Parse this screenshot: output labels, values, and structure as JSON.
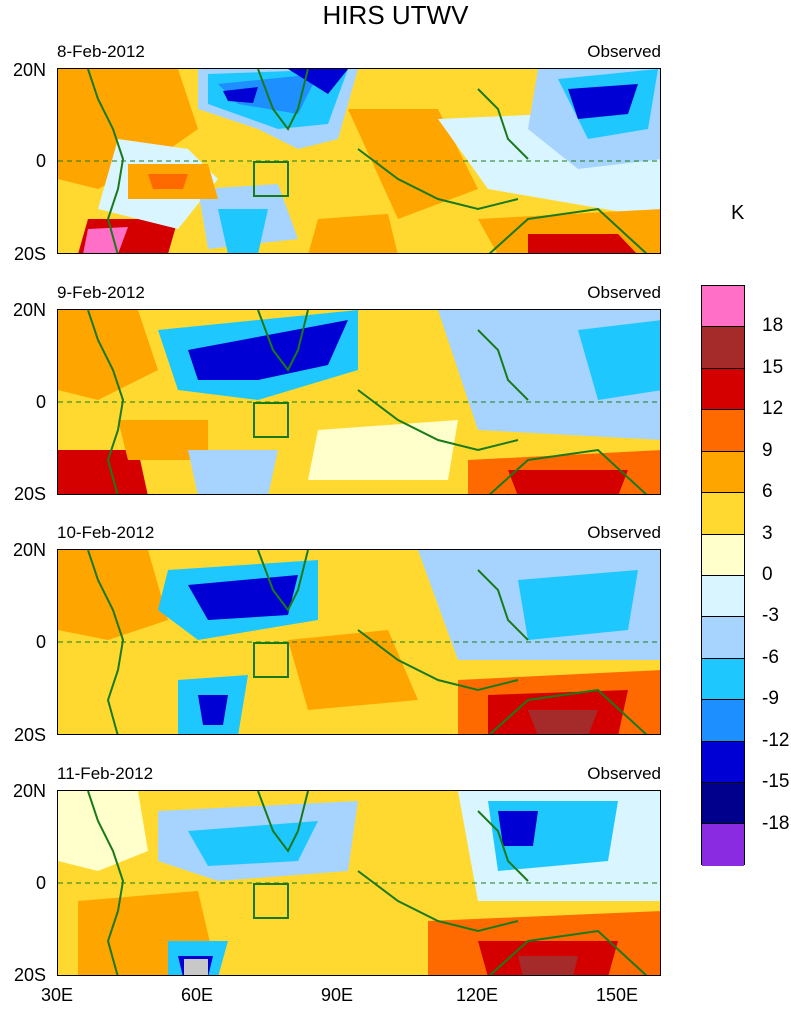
{
  "title": "HIRS UTWV",
  "units": "K",
  "latitude_labels": [
    "20N",
    "0",
    "20S"
  ],
  "longitude_labels": [
    "30E",
    "60E",
    "90E",
    "120E",
    "150E"
  ],
  "panels": [
    {
      "date": "8-Feb-2012",
      "label": "Observed"
    },
    {
      "date": "9-Feb-2012",
      "label": "Observed"
    },
    {
      "date": "10-Feb-2012",
      "label": "Observed"
    },
    {
      "date": "11-Feb-2012",
      "label": "Observed"
    }
  ],
  "colorbar": {
    "ticks": [
      "18",
      "15",
      "12",
      "9",
      "6",
      "3",
      "0",
      "-3",
      "-6",
      "-9",
      "-12",
      "-15",
      "-18"
    ],
    "colors": [
      "#ff6ec7",
      "#a52a2a",
      "#d40000",
      "#ff6a00",
      "#ffa500",
      "#ffd92f",
      "#ffffcc",
      "#d9f5ff",
      "#a6d4ff",
      "#1ec8ff",
      "#1e8fff",
      "#0000d4",
      "#00008c",
      "#8a2be2"
    ]
  },
  "colors": {
    "coastline": "#1a7a1a",
    "background": "#ffffff"
  }
}
